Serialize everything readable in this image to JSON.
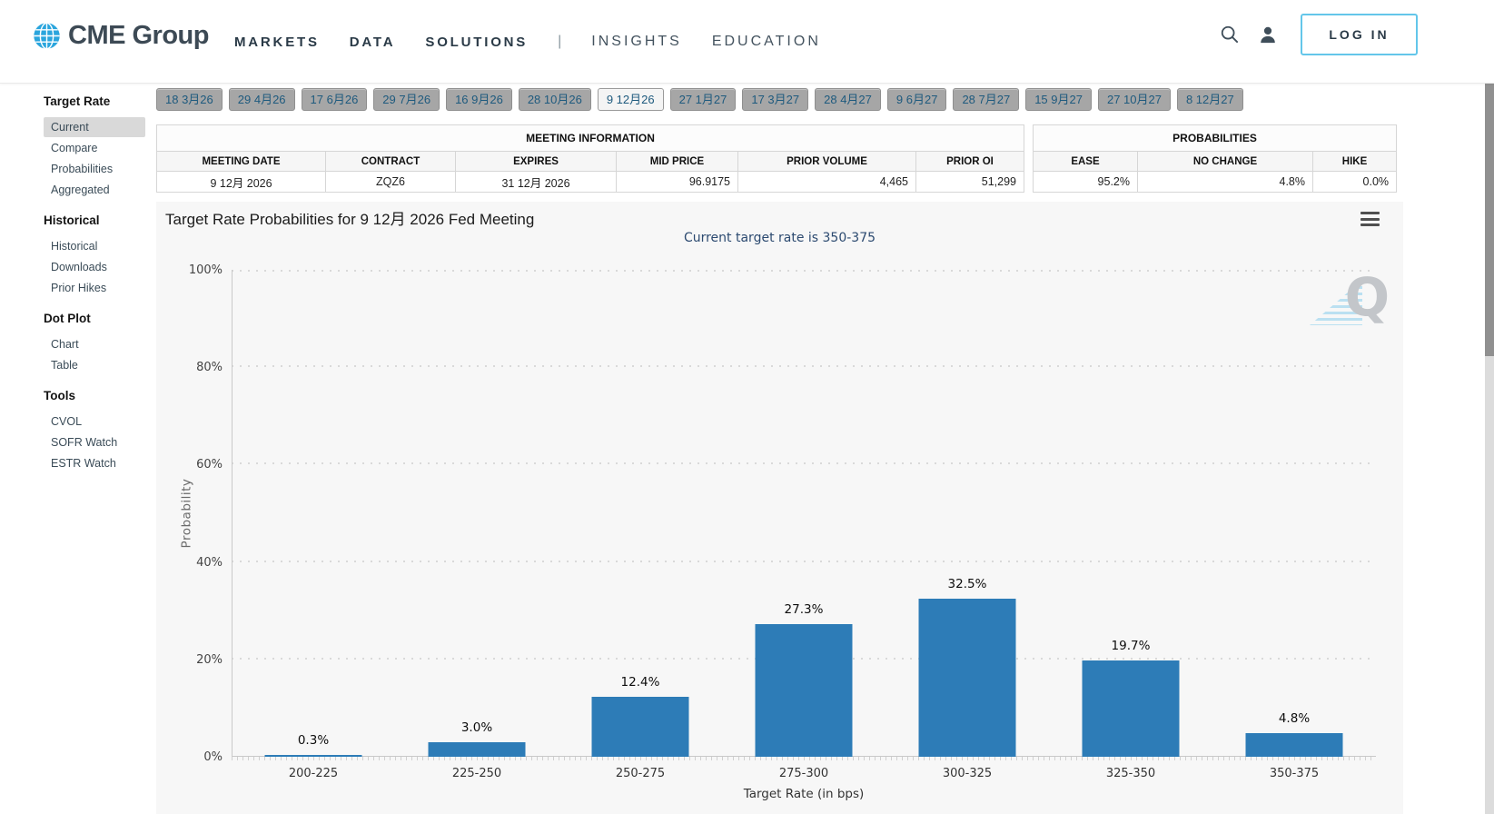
{
  "header": {
    "logo_text": "CME Group",
    "nav_primary": [
      "MARKETS",
      "DATA",
      "SOLUTIONS"
    ],
    "nav_separator": "|",
    "nav_secondary": [
      "INSIGHTS",
      "EDUCATION"
    ],
    "login_label": "LOG IN",
    "icons": {
      "search": "magnifier-glyph",
      "user": "person-silhouette",
      "logo": "blue-globe"
    }
  },
  "sidebar": {
    "sections": [
      {
        "heading": "Target Rate",
        "items": [
          {
            "label": "Current",
            "selected": true
          },
          {
            "label": "Compare"
          },
          {
            "label": "Probabilities"
          },
          {
            "label": "Aggregated"
          }
        ]
      },
      {
        "heading": "Historical",
        "items": [
          {
            "label": "Historical"
          },
          {
            "label": "Downloads"
          },
          {
            "label": "Prior Hikes"
          }
        ]
      },
      {
        "heading": "Dot Plot",
        "items": [
          {
            "label": "Chart"
          },
          {
            "label": "Table"
          }
        ]
      },
      {
        "heading": "Tools",
        "items": [
          {
            "label": "CVOL"
          },
          {
            "label": "SOFR Watch"
          },
          {
            "label": "ESTR Watch"
          }
        ]
      }
    ]
  },
  "meeting_tabs": {
    "labels": [
      "18 3月26",
      "29 4月26",
      "17 6月26",
      "29 7月26",
      "16 9月26",
      "28 10月26",
      "9 12月26",
      "27 1月27",
      "17 3月27",
      "28 4月27",
      "9 6月27",
      "28 7月27",
      "15 9月27",
      "27 10月27",
      "8 12月27"
    ],
    "selected": "9 12月26"
  },
  "meeting_info": {
    "caption": "MEETING INFORMATION",
    "columns": [
      "MEETING DATE",
      "CONTRACT",
      "EXPIRES",
      "MID PRICE",
      "PRIOR VOLUME",
      "PRIOR OI"
    ],
    "row": [
      "9 12月 2026",
      "ZQZ6",
      "31 12月 2026",
      "96.9175",
      "4,465",
      "51,299"
    ]
  },
  "probabilities": {
    "caption": "PROBABILITIES",
    "columns": [
      "EASE",
      "NO CHANGE",
      "HIKE"
    ],
    "row": [
      "95.2%",
      "4.8%",
      "0.0%"
    ]
  },
  "chart_data": {
    "type": "bar",
    "title": "Target Rate Probabilities for 9 12月 2026 Fed Meeting",
    "subtitle": "Current target rate is 350-375",
    "categories": [
      "200-225",
      "225-250",
      "250-275",
      "275-300",
      "300-325",
      "325-350",
      "350-375"
    ],
    "values": [
      0.3,
      3.0,
      12.4,
      27.3,
      32.5,
      19.7,
      4.8
    ],
    "labels": [
      "0.3%",
      "3.0%",
      "12.4%",
      "27.3%",
      "32.5%",
      "19.7%",
      "4.8%"
    ],
    "xlabel": "Target Rate (in bps)",
    "ylabel": "Probability",
    "ylim": [
      0,
      100
    ],
    "yticks": [
      "0%",
      "20%",
      "40%",
      "60%",
      "80%",
      "100%"
    ],
    "grid": "dotted-horizontal",
    "legend": "none",
    "bar_color": "#2d7cb7",
    "background": "#f7f7f7",
    "watermark": "Q"
  },
  "colors": {
    "accent_blue": "#2aa5dd",
    "login_border": "#63c6ea",
    "bar": "#2d7cb7",
    "tab_text": "#1e5a7e",
    "subtitle_navy": "#2c4a70",
    "selected_sidebar_bg": "#d9d9d9"
  }
}
